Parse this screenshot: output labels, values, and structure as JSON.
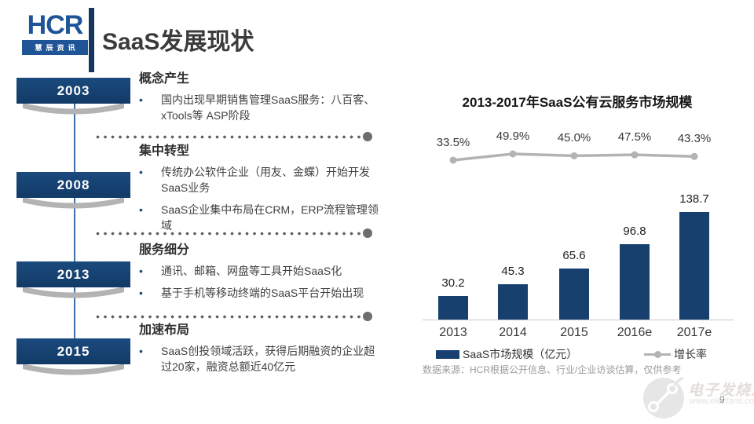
{
  "header": {
    "logo_text": "HCR",
    "logo_subtext": "慧辰资讯",
    "title": "SaaS发展现状"
  },
  "timeline": {
    "sections": [
      {
        "year": "2003",
        "heading": "概念产生",
        "bullets": [
          "国内出现早期销售管理SaaS服务：八百客、xTools等 ASP阶段"
        ]
      },
      {
        "year": "2008",
        "heading": "集中转型",
        "bullets": [
          "传统办公软件企业（用友、金蝶）开始开发SaaS业务",
          "SaaS企业集中布局在CRM，ERP流程管理领域"
        ]
      },
      {
        "year": "2013",
        "heading": "服务细分",
        "bullets": [
          "通讯、邮箱、网盘等工具开始SaaS化",
          "基于手机等移动终端的SaaS平台开始出现"
        ]
      },
      {
        "year": "2015",
        "heading": "加速布局",
        "bullets": [
          "SaaS创投领域活跃，获得后期融资的企业超过20家，融资总额近40亿元"
        ]
      }
    ]
  },
  "chart_data": {
    "type": "bar",
    "title": "2013-2017年SaaS公有云服务市场规模",
    "categories": [
      "2013",
      "2014",
      "2015",
      "2016e",
      "2017e"
    ],
    "series": [
      {
        "name": "SaaS市场规模（亿元）",
        "type": "bar",
        "values": [
          30.2,
          45.3,
          65.6,
          96.8,
          138.7
        ],
        "labels": [
          "30.2",
          "45.3",
          "65.6",
          "96.8",
          "138.7"
        ],
        "color": "#17406e"
      },
      {
        "name": "增长率",
        "type": "line",
        "values": [
          33.5,
          49.9,
          45.0,
          47.5,
          43.3
        ],
        "labels": [
          "33.5%",
          "49.9%",
          "45.0%",
          "47.5%",
          "43.3%"
        ],
        "color": "#b3b3b3"
      }
    ],
    "ylim": [
      0,
      150
    ],
    "grid": false,
    "legend_position": "bottom",
    "source": "数据来源：HCR根据公开信息、行业/企业访谈估算，仅供参考"
  },
  "watermark": {
    "brand": "电子发烧友",
    "url": "www.elecfans.com"
  },
  "page_number": "9",
  "colors": {
    "navy": "#17406e",
    "logo_blue": "#1f5496",
    "divider_navy": "#17375d",
    "line_gray": "#b3b3b3",
    "timeline_line_blue": "#3f6fa8"
  }
}
